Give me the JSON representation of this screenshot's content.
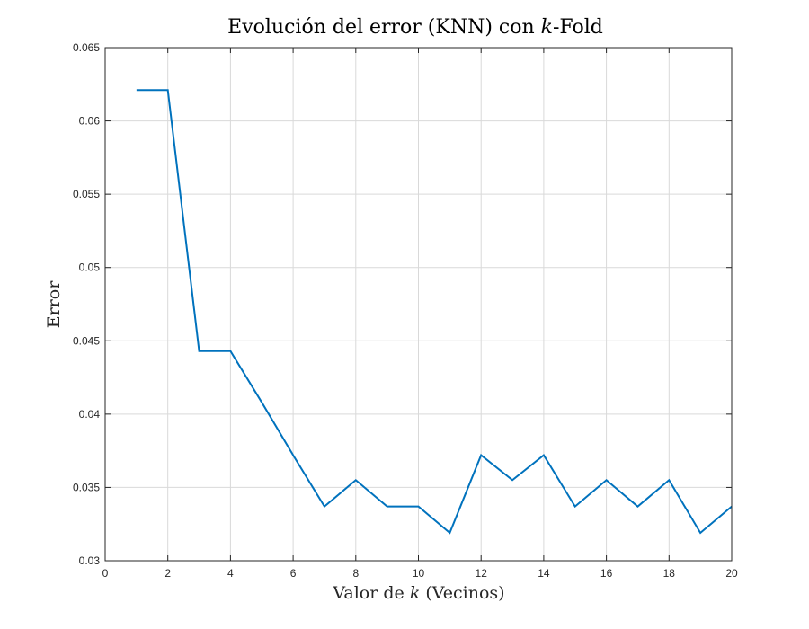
{
  "chart_data": {
    "type": "line",
    "title_text": "Evolución del error (KNN) con ",
    "title_var": "k",
    "title_suffix": "-Fold",
    "xlabel_text": "Valor de ",
    "xlabel_var": "k",
    "xlabel_suffix": " (Vecinos)",
    "ylabel": "Error",
    "xlim": [
      0,
      20
    ],
    "ylim": [
      0.03,
      0.065
    ],
    "xticks": [
      0,
      2,
      4,
      6,
      8,
      10,
      12,
      14,
      16,
      18,
      20
    ],
    "xtick_labels": [
      "0",
      "2",
      "4",
      "6",
      "8",
      "10",
      "12",
      "14",
      "16",
      "18",
      "20"
    ],
    "yticks": [
      0.03,
      0.035,
      0.04,
      0.045,
      0.05,
      0.055,
      0.06,
      0.065
    ],
    "ytick_labels": [
      "0.03",
      "0.035",
      "0.04",
      "0.045",
      "0.05",
      "0.055",
      "0.06",
      "0.065"
    ],
    "grid": true,
    "line_color": "#0072BD",
    "x": [
      1,
      2,
      3,
      4,
      5,
      6,
      7,
      8,
      9,
      10,
      11,
      12,
      13,
      14,
      15,
      16,
      17,
      18,
      19,
      20
    ],
    "series": [
      {
        "values": [
          0.0621,
          0.0621,
          0.0443,
          0.0443,
          0.0408,
          0.0372,
          0.0337,
          0.0355,
          0.0337,
          0.0337,
          0.0319,
          0.0372,
          0.0355,
          0.0372,
          0.0337,
          0.0355,
          0.0337,
          0.0355,
          0.0319,
          0.0337
        ]
      }
    ]
  }
}
